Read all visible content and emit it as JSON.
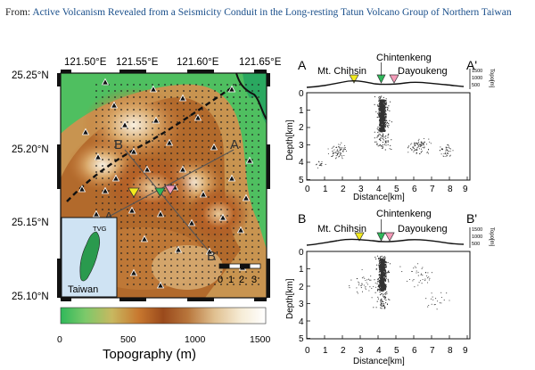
{
  "caption": {
    "prefix": "From:",
    "title": "Active Volcanism Revealed from a Seismicity Conduit in the Long-resting Tatun Volcano Group of Northern Taiwan"
  },
  "map": {
    "lon_ticks": [
      "121.50°E",
      "121.55°E",
      "121.60°E",
      "121.65°E"
    ],
    "lat_ticks": [
      "25.25°N",
      "25.20°N",
      "25.15°N",
      "25.10°N"
    ],
    "profile_labels": {
      "a_start": "A",
      "a_end": "A'",
      "b_start": "B",
      "b_end": "B'"
    },
    "inset_tag": "TVG",
    "inset_label": "Taiwan",
    "scale_labels": [
      "0",
      "1",
      "2",
      "3"
    ]
  },
  "colorbar": {
    "ticks": [
      "0",
      "500",
      "1000",
      "1500"
    ],
    "label": "Topography (m)",
    "colors": [
      "#2fb85a",
      "#7cc96a",
      "#c8b860",
      "#c8782f",
      "#9a4a1c",
      "#b8763c",
      "#e0c090",
      "#f6ecd6",
      "#ffffff"
    ]
  },
  "sections": [
    {
      "start": "A",
      "end": "A'",
      "places": [
        "Mt. Chihsin",
        "Chintenkeng",
        "Dayoukeng"
      ],
      "ylabel": "Depth[km]",
      "xlabel": "Distance[km]",
      "xticks": [
        "0",
        "1",
        "2",
        "3",
        "4",
        "5",
        "6",
        "7",
        "8",
        "9"
      ],
      "yticks": [
        "0",
        "1",
        "2",
        "3",
        "4",
        "5"
      ],
      "topo_ticks": [
        "1500",
        "1000",
        "500"
      ],
      "topo_label": "Topo[m]"
    },
    {
      "start": "B",
      "end": "B'",
      "places": [
        "Mt. Chihsin",
        "Chintenkeng",
        "Dayoukeng"
      ],
      "ylabel": "Depth[km]",
      "xlabel": "Distance[km]",
      "xticks": [
        "0",
        "1",
        "2",
        "3",
        "4",
        "5",
        "6",
        "7",
        "8",
        "9"
      ],
      "yticks": [
        "0",
        "1",
        "2",
        "3",
        "4",
        "5"
      ],
      "topo_ticks": [
        "1500",
        "1000",
        "500"
      ],
      "topo_label": "Topo[m]"
    }
  ]
}
